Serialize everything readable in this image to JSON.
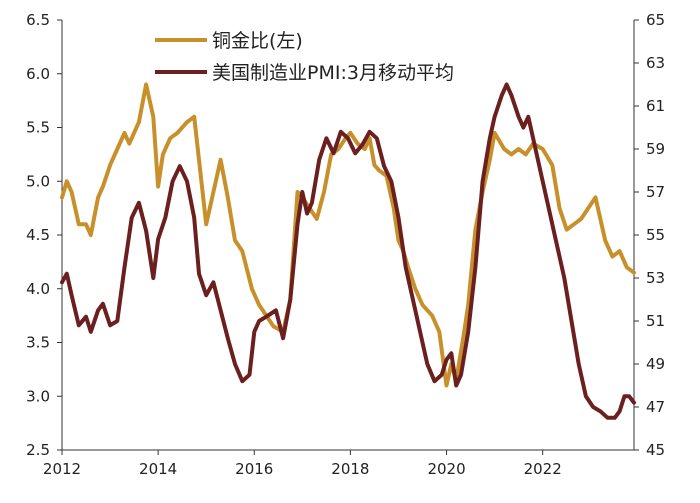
{
  "chart_data": {
    "type": "line",
    "title": "",
    "xlabel": "",
    "x_ticks": [
      "2012",
      "2014",
      "2016",
      "2018",
      "2020",
      "2022"
    ],
    "y_left_ticks": [
      "2.5",
      "3.0",
      "3.5",
      "4.0",
      "4.5",
      "5.0",
      "5.5",
      "6.0",
      "6.5"
    ],
    "y_right_ticks": [
      "45",
      "47",
      "49",
      "51",
      "53",
      "55",
      "57",
      "59",
      "61",
      "63",
      "65"
    ],
    "y_left_range": [
      2.5,
      6.5
    ],
    "y_right_range": [
      45,
      65
    ],
    "x_range": [
      2012.0,
      2023.9
    ],
    "legend": {
      "placement": "top-center"
    },
    "series": [
      {
        "name": "铜金比(左)",
        "axis": "left",
        "color": "#c8902a",
        "x": [
          2012.0,
          2012.1,
          2012.2,
          2012.35,
          2012.5,
          2012.6,
          2012.75,
          2012.85,
          2013.0,
          2013.15,
          2013.3,
          2013.4,
          2013.6,
          2013.75,
          2013.9,
          2014.0,
          2014.1,
          2014.25,
          2014.4,
          2014.6,
          2014.75,
          2014.85,
          2015.0,
          2015.15,
          2015.3,
          2015.45,
          2015.6,
          2015.75,
          2015.95,
          2016.1,
          2016.25,
          2016.4,
          2016.6,
          2016.75,
          2016.9,
          2017.0,
          2017.15,
          2017.3,
          2017.45,
          2017.6,
          2017.75,
          2017.9,
          2018.0,
          2018.15,
          2018.3,
          2018.4,
          2018.5,
          2018.6,
          2018.75,
          2018.9,
          2019.0,
          2019.1,
          2019.2,
          2019.35,
          2019.5,
          2019.7,
          2019.85,
          2020.0,
          2020.1,
          2020.2,
          2020.35,
          2020.45,
          2020.6,
          2020.75,
          2020.9,
          2021.0,
          2021.2,
          2021.35,
          2021.5,
          2021.65,
          2021.8,
          2022.0,
          2022.2,
          2022.35,
          2022.5,
          2022.65,
          2022.8,
          2022.95,
          2023.1,
          2023.3,
          2023.45,
          2023.6,
          2023.75,
          2023.9
        ],
        "values": [
          4.85,
          5.0,
          4.9,
          4.6,
          4.6,
          4.5,
          4.85,
          4.95,
          5.15,
          5.3,
          5.45,
          5.35,
          5.55,
          5.9,
          5.6,
          4.95,
          5.25,
          5.4,
          5.45,
          5.55,
          5.6,
          5.2,
          4.6,
          4.9,
          5.2,
          4.85,
          4.45,
          4.35,
          4.0,
          3.85,
          3.75,
          3.65,
          3.6,
          3.9,
          4.9,
          4.85,
          4.75,
          4.65,
          4.9,
          5.25,
          5.3,
          5.4,
          5.45,
          5.35,
          5.3,
          5.4,
          5.15,
          5.1,
          5.05,
          4.75,
          4.45,
          4.35,
          4.2,
          4.0,
          3.85,
          3.75,
          3.6,
          3.1,
          3.3,
          3.15,
          3.55,
          3.85,
          4.55,
          4.9,
          5.2,
          5.45,
          5.3,
          5.25,
          5.3,
          5.25,
          5.35,
          5.3,
          5.15,
          4.75,
          4.55,
          4.6,
          4.65,
          4.75,
          4.85,
          4.45,
          4.3,
          4.35,
          4.2,
          4.15
        ]
      },
      {
        "name": "美国制造业PMI:3月移动平均",
        "axis": "right",
        "color": "#6b1f1f",
        "x": [
          2012.0,
          2012.1,
          2012.2,
          2012.35,
          2012.5,
          2012.6,
          2012.75,
          2012.85,
          2013.0,
          2013.15,
          2013.3,
          2013.45,
          2013.6,
          2013.75,
          2013.9,
          2014.0,
          2014.15,
          2014.3,
          2014.45,
          2014.6,
          2014.75,
          2014.85,
          2015.0,
          2015.15,
          2015.3,
          2015.45,
          2015.6,
          2015.75,
          2015.9,
          2016.0,
          2016.1,
          2016.25,
          2016.45,
          2016.6,
          2016.75,
          2016.9,
          2017.0,
          2017.1,
          2017.2,
          2017.35,
          2017.5,
          2017.65,
          2017.8,
          2017.95,
          2018.1,
          2018.25,
          2018.4,
          2018.55,
          2018.7,
          2018.85,
          2019.0,
          2019.15,
          2019.3,
          2019.45,
          2019.6,
          2019.75,
          2019.9,
          2020.0,
          2020.1,
          2020.2,
          2020.3,
          2020.45,
          2020.6,
          2020.75,
          2020.9,
          2021.0,
          2021.15,
          2021.25,
          2021.35,
          2021.5,
          2021.6,
          2021.7,
          2021.85,
          2022.0,
          2022.15,
          2022.3,
          2022.45,
          2022.6,
          2022.75,
          2022.9,
          2023.05,
          2023.2,
          2023.35,
          2023.5,
          2023.6,
          2023.7,
          2023.8,
          2023.9
        ],
        "values": [
          52.8,
          53.2,
          52.2,
          50.8,
          51.2,
          50.5,
          51.5,
          51.8,
          50.8,
          51.0,
          53.5,
          55.8,
          56.5,
          55.2,
          53.0,
          54.8,
          55.8,
          57.5,
          58.2,
          57.5,
          55.8,
          53.2,
          52.2,
          52.8,
          51.5,
          50.2,
          49.0,
          48.2,
          48.5,
          50.5,
          51.0,
          51.2,
          51.5,
          50.2,
          52.0,
          55.5,
          57.0,
          56.0,
          56.5,
          58.5,
          59.5,
          58.8,
          59.8,
          59.5,
          58.8,
          59.2,
          59.8,
          59.5,
          58.2,
          57.5,
          55.8,
          53.5,
          52.0,
          50.5,
          49.0,
          48.2,
          48.5,
          49.2,
          49.5,
          48.0,
          48.5,
          50.5,
          53.5,
          57.5,
          59.5,
          60.5,
          61.5,
          62.0,
          61.5,
          60.5,
          60.0,
          60.5,
          59.0,
          57.5,
          56.0,
          54.5,
          53.0,
          51.0,
          49.0,
          47.5,
          47.0,
          46.8,
          46.5,
          46.5,
          46.8,
          47.5,
          47.5,
          47.2
        ]
      }
    ]
  }
}
